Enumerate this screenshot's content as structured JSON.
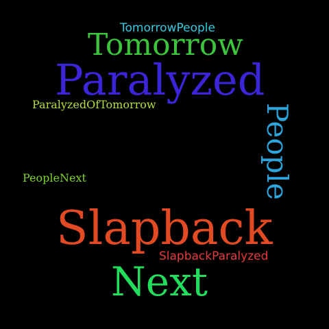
{
  "words": {
    "tomorrowpeople": {
      "text": "TomorrowPeople",
      "color": "#35c9e0"
    },
    "tomorrow": {
      "text": "Tomorrow",
      "color": "#3cc43c"
    },
    "paralyzed": {
      "text": "Paralyzed",
      "color": "#3b25d8"
    },
    "paralyzedoftomorrow": {
      "text": "ParalyzedOfTomorrow",
      "color": "#b5e03a"
    },
    "people": {
      "text": "People",
      "color": "#2ea4dc"
    },
    "peoplenext": {
      "text": "PeopleNext",
      "color": "#7fd42a"
    },
    "slapback": {
      "text": "Slapback",
      "color": "#e24a24"
    },
    "slapbackparalyzed": {
      "text": "SlapbackParalyzed",
      "color": "#e53b3b"
    },
    "next": {
      "text": "Next",
      "color": "#22dc5c"
    }
  }
}
